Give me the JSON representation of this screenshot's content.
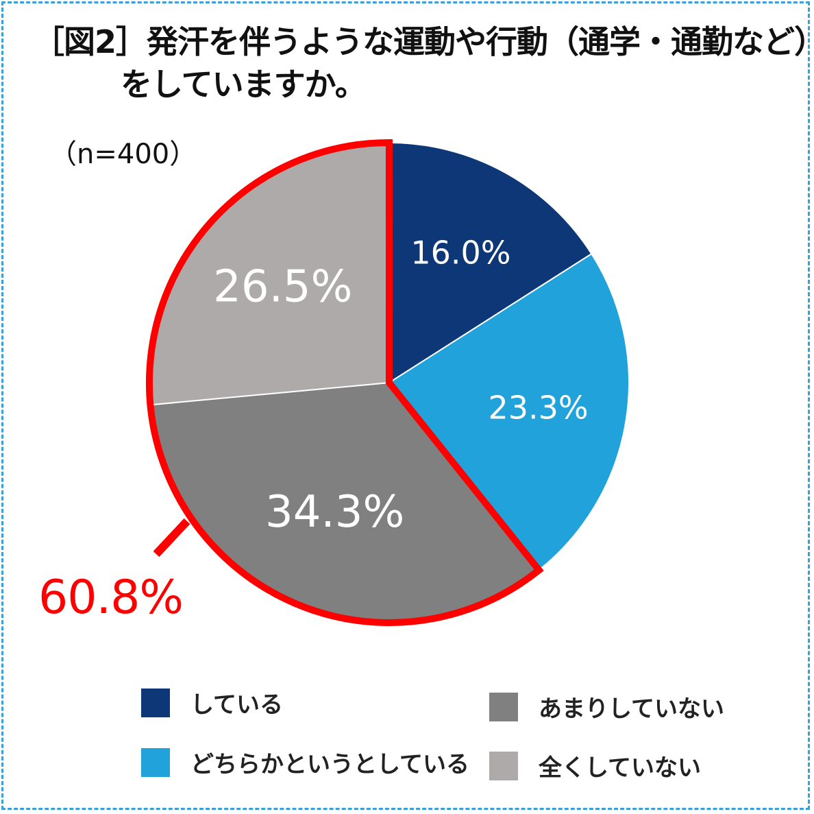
{
  "title": {
    "line1": "［図2］発汗を伴うような運動や行動（通学・通勤など）",
    "line2": "をしていますか。"
  },
  "sample_size": "（n=400）",
  "chart_data": {
    "type": "pie",
    "title": "［図2］発汗を伴うような運動や行動（通学・通勤など）をしていますか。",
    "slices": [
      {
        "label": "している",
        "value": 16.0,
        "display": "16.0%",
        "color": "#0e3778"
      },
      {
        "label": "どちらかというとしている",
        "value": 23.3,
        "display": "23.3%",
        "color": "#22a2da"
      },
      {
        "label": "あまりしていない",
        "value": 34.3,
        "display": "34.3%",
        "color": "#808080"
      },
      {
        "label": "全くしていない",
        "value": 26.5,
        "display": "26.5%",
        "color": "#aeaaa9"
      }
    ],
    "highlight": {
      "label": "60.8%",
      "covers": [
        "あまりしていない",
        "全くしていない"
      ],
      "color": "#ff0000"
    },
    "legend_placement": "bottom"
  },
  "legend": [
    {
      "label": "している"
    },
    {
      "label": "どちらかというとしている"
    },
    {
      "label": "あまりしていない"
    },
    {
      "label": "全くしていない"
    }
  ]
}
